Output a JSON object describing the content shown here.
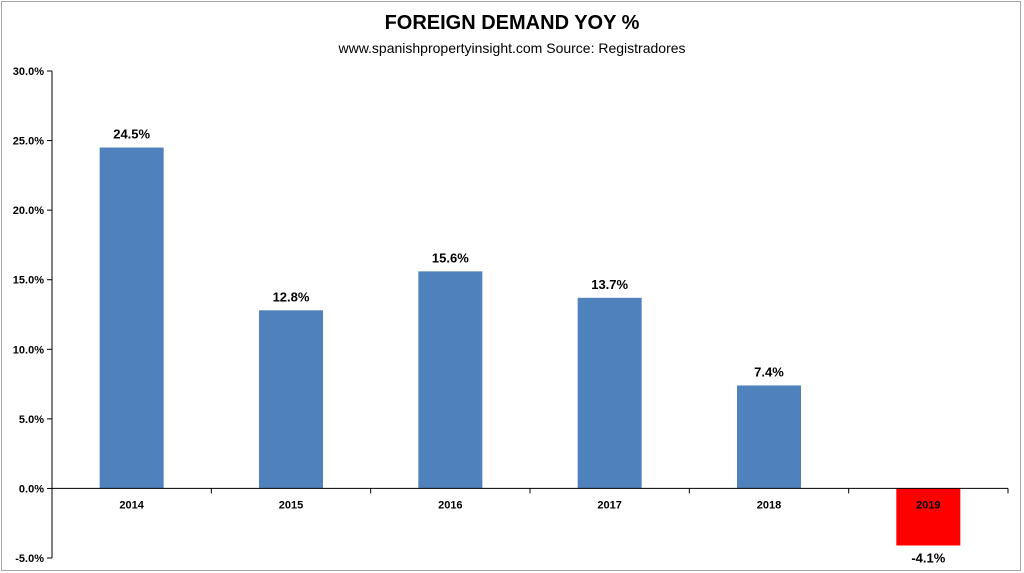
{
  "chart_data": {
    "type": "bar",
    "title": "FOREIGN DEMAND YOY %",
    "subtitle": "www.spanishpropertyinsight.com Source: Registradores",
    "categories": [
      "2014",
      "2015",
      "2016",
      "2017",
      "2018",
      "2019"
    ],
    "values": [
      24.5,
      12.8,
      15.6,
      13.7,
      7.4,
      -4.1
    ],
    "data_labels": [
      "24.5%",
      "12.8%",
      "15.6%",
      "13.7%",
      "7.4%",
      "-4.1%"
    ],
    "yticks": [
      30.0,
      25.0,
      20.0,
      15.0,
      10.0,
      5.0,
      0.0,
      -5.0
    ],
    "ytick_labels": [
      "30.0%",
      "25.0%",
      "20.0%",
      "15.0%",
      "10.0%",
      "5.0%",
      "0.0%",
      "-5.0%"
    ],
    "ylim": [
      -5,
      30
    ],
    "grid": false,
    "legend": "none",
    "colors": {
      "positive": "#4f81bd",
      "negative": "#ff0000",
      "axis": "#000000"
    }
  }
}
